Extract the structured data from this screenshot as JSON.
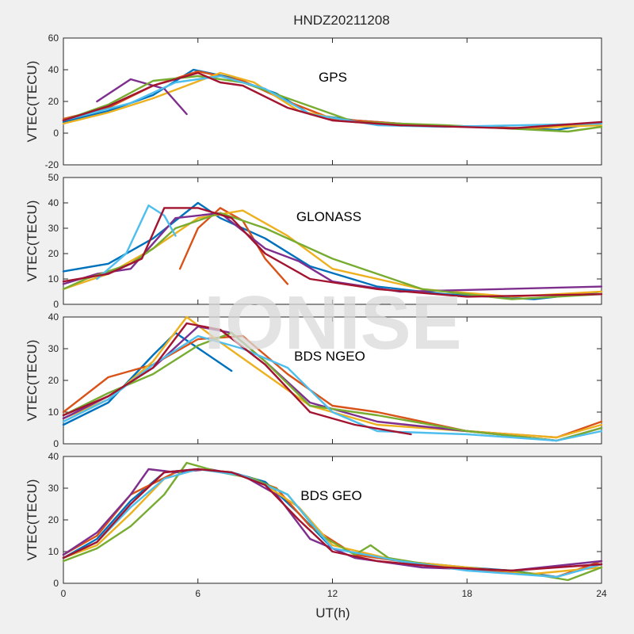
{
  "title": "HNDZ20211208",
  "watermark": "IONISE",
  "xlabel": "UT(h)",
  "x_ticks": [
    "0",
    "6",
    "12",
    "18",
    "24"
  ],
  "xlim": [
    0,
    24
  ],
  "line_colors": [
    "#0072BD",
    "#D95319",
    "#EDB120",
    "#7E2F8E",
    "#77AC30",
    "#4DBEEE",
    "#A2142F"
  ],
  "chart_data": [
    {
      "type": "line",
      "panel_label": "GPS",
      "ylabel": "VTEC(TECU)",
      "ylim": [
        -20,
        60
      ],
      "y_ticks": [
        "-20",
        "0",
        "20",
        "40",
        "60"
      ],
      "series": [
        {
          "x": [
            0,
            2,
            4,
            5.8,
            7.5,
            9.5,
            11,
            13,
            16,
            19,
            22,
            24
          ],
          "values": [
            7,
            14,
            24,
            40,
            35,
            25,
            12,
            8,
            5,
            4,
            2,
            7
          ]
        },
        {
          "x": [
            0,
            2,
            4,
            6,
            8,
            10,
            12,
            15,
            18,
            21,
            24
          ],
          "values": [
            9,
            16,
            30,
            39,
            33,
            20,
            9,
            6,
            4,
            3,
            6
          ]
        },
        {
          "x": [
            0,
            2,
            4,
            5.5,
            7,
            8.5,
            10.5,
            13,
            16,
            20,
            24
          ],
          "values": [
            6,
            13,
            22,
            30,
            38,
            32,
            14,
            7,
            5,
            3,
            5
          ]
        },
        {
          "x": [
            1.5,
            3,
            4.5,
            5.5
          ],
          "values": [
            20,
            34,
            28,
            12
          ]
        },
        {
          "x": [
            0,
            2,
            4,
            6,
            8,
            10,
            13,
            17,
            22.5,
            24
          ],
          "values": [
            8,
            18,
            33,
            36,
            32,
            22,
            7,
            5,
            1,
            4
          ]
        },
        {
          "x": [
            0,
            3,
            5,
            7,
            9,
            11,
            14,
            17,
            24
          ],
          "values": [
            8,
            19,
            32,
            36,
            28,
            12,
            5,
            4,
            6
          ]
        },
        {
          "x": [
            0,
            2,
            4,
            6,
            7,
            8,
            10,
            12,
            15,
            20,
            24
          ],
          "values": [
            8,
            17,
            30,
            38,
            32,
            30,
            16,
            8,
            5,
            3,
            7
          ]
        }
      ]
    },
    {
      "type": "line",
      "panel_label": "GLONASS",
      "ylabel": "VTEC(TECU)",
      "ylim": [
        0,
        50
      ],
      "y_ticks": [
        "0",
        "10",
        "20",
        "30",
        "40",
        "50"
      ],
      "series": [
        {
          "x": [
            0,
            2,
            4,
            6,
            7,
            9,
            11,
            14,
            17,
            21,
            24
          ],
          "values": [
            13,
            16,
            26,
            40,
            34,
            26,
            15,
            7,
            4,
            2,
            5
          ]
        },
        {
          "x": [
            5.2,
            6,
            7,
            8,
            9,
            10
          ],
          "values": [
            14,
            30,
            38,
            33,
            18,
            8
          ]
        },
        {
          "x": [
            0,
            2,
            4,
            6,
            8,
            10,
            12,
            16,
            20,
            24
          ],
          "values": [
            6,
            12,
            22,
            34,
            37,
            27,
            14,
            6,
            3,
            5
          ]
        },
        {
          "x": [
            0,
            1.5,
            3,
            5,
            7,
            9,
            10.5,
            12,
            15,
            24
          ],
          "values": [
            8,
            12,
            14,
            34,
            36,
            22,
            17,
            9,
            5,
            7
          ]
        },
        {
          "x": [
            0,
            1,
            2,
            3,
            4,
            5,
            7,
            9,
            12,
            16,
            20,
            24
          ],
          "values": [
            6,
            10,
            13,
            16,
            22,
            30,
            36,
            30,
            18,
            6,
            2,
            4
          ]
        },
        {
          "x": [
            1.5,
            2.8,
            3.8,
            4.5,
            5
          ],
          "values": [
            10,
            20,
            39,
            35,
            27
          ]
        },
        {
          "x": [
            0,
            2,
            3.5,
            4.5,
            6,
            7.5,
            9,
            11,
            14,
            18,
            24
          ],
          "values": [
            9,
            12,
            18,
            38,
            38,
            34,
            20,
            10,
            6,
            3,
            4
          ]
        }
      ]
    },
    {
      "type": "line",
      "panel_label": "BDS NGEO",
      "ylabel": "VTEC(TECU)",
      "ylim": [
        0,
        40
      ],
      "y_ticks": [
        "0",
        "10",
        "20",
        "30",
        "40"
      ],
      "series": [
        {
          "x": [
            0,
            2,
            4,
            5,
            7.5
          ],
          "values": [
            6,
            13,
            28,
            35,
            23
          ]
        },
        {
          "x": [
            0,
            2,
            4,
            6,
            8,
            10,
            12,
            14,
            18,
            22,
            24
          ],
          "values": [
            10,
            21,
            25,
            33,
            34,
            22,
            12,
            10,
            4,
            2,
            7
          ]
        },
        {
          "x": [
            0,
            2,
            4,
            5.5,
            7,
            9,
            11,
            14,
            18,
            22,
            24
          ],
          "values": [
            8,
            14,
            26,
            40,
            32,
            22,
            12,
            6,
            4,
            2,
            6
          ]
        },
        {
          "x": [
            0,
            2,
            4,
            6,
            7.5,
            9,
            11,
            14,
            18,
            22,
            24
          ],
          "values": [
            8,
            15,
            24,
            37,
            35,
            26,
            13,
            7,
            4,
            1,
            5
          ]
        },
        {
          "x": [
            0,
            2,
            4,
            6,
            7.5,
            9,
            11,
            14,
            18,
            22,
            24
          ],
          "values": [
            9,
            16,
            22,
            31,
            35,
            26,
            12,
            9,
            4,
            1,
            5
          ]
        },
        {
          "x": [
            0,
            2,
            4,
            6,
            8,
            10,
            12,
            14,
            18,
            22,
            24
          ],
          "values": [
            7,
            14,
            25,
            34,
            30,
            24,
            10,
            4,
            3,
            1,
            4
          ]
        },
        {
          "x": [
            0,
            2,
            4,
            5.5,
            7,
            9,
            11,
            13,
            15.5
          ],
          "values": [
            9,
            15,
            24,
            38,
            36,
            25,
            10,
            6,
            3
          ]
        }
      ]
    },
    {
      "type": "line",
      "panel_label": "BDS GEO",
      "ylabel": "VTEC(TECU)",
      "ylim": [
        0,
        40
      ],
      "y_ticks": [
        "0",
        "10",
        "20",
        "30",
        "40"
      ],
      "series": [
        {
          "x": [
            0,
            1.5,
            3,
            4.5,
            6,
            7.5,
            9,
            10.5,
            12,
            15,
            18,
            20,
            22,
            24
          ],
          "values": [
            8,
            14,
            26,
            35,
            36,
            35,
            32,
            22,
            11,
            7,
            5,
            4,
            2,
            6
          ]
        },
        {
          "x": [
            0,
            1.5,
            3,
            5,
            6.5,
            8,
            9.5,
            11,
            13,
            16,
            19,
            22,
            24
          ],
          "values": [
            9,
            15,
            28,
            35,
            36,
            34,
            30,
            18,
            9,
            6,
            4,
            2,
            7
          ]
        },
        {
          "x": [
            0,
            1.5,
            3,
            4.5,
            6,
            7.5,
            9,
            10.5,
            12,
            15,
            18,
            21,
            24
          ],
          "values": [
            8,
            12,
            22,
            33,
            36,
            35,
            31,
            24,
            12,
            7,
            5,
            3,
            5
          ]
        },
        {
          "x": [
            0,
            1.5,
            3,
            3.8,
            5,
            6.5,
            8,
            9.5,
            11,
            13,
            16,
            20,
            24
          ],
          "values": [
            9,
            16,
            28,
            36,
            35,
            36,
            34,
            28,
            14,
            8,
            5,
            4,
            7
          ]
        },
        {
          "x": [
            0,
            1.5,
            3,
            4.5,
            5.5,
            7,
            8.5,
            10,
            11.5,
            13,
            13.7,
            14.5,
            17,
            20,
            22.5,
            24
          ],
          "values": [
            7,
            11,
            18,
            28,
            38,
            35,
            33,
            28,
            15,
            9,
            12,
            8,
            5,
            4,
            1,
            5
          ]
        },
        {
          "x": [
            0,
            1.5,
            3,
            4.5,
            6,
            8,
            10,
            12,
            15,
            18,
            22,
            24
          ],
          "values": [
            8,
            13,
            24,
            33,
            36,
            34,
            28,
            11,
            7,
            4,
            2,
            6
          ]
        },
        {
          "x": [
            0,
            1.5,
            3,
            4.5,
            6,
            7.5,
            9,
            10.5,
            12,
            14,
            17,
            20,
            24
          ],
          "values": [
            8,
            13,
            25,
            35,
            36,
            35,
            31,
            20,
            10,
            7,
            5,
            4,
            6
          ]
        }
      ]
    }
  ]
}
